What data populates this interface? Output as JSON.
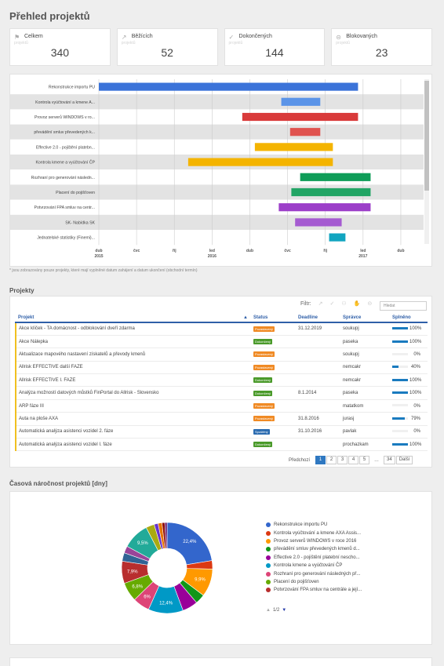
{
  "page": {
    "title": "Přehled projektů"
  },
  "stats": [
    {
      "icon": "flag-icon",
      "glyph": "⚑",
      "label": "Celkem",
      "sub": "projektů",
      "value": "340"
    },
    {
      "icon": "arrow-icon",
      "glyph": "↗",
      "label": "Běžících",
      "sub": "projektů",
      "value": "52"
    },
    {
      "icon": "check-icon",
      "glyph": "✓",
      "label": "Dokončených",
      "sub": "projektů",
      "value": "144"
    },
    {
      "icon": "blocked-icon",
      "glyph": "⊝",
      "label": "Blokovaných",
      "sub": "projektů",
      "value": "23"
    }
  ],
  "gantt": {
    "note": "* jsou zobrazovány pouze projekty, které mají vyplněné datum zahájení a datum ukončení (obchodní termín)",
    "axis_labels": [
      {
        "m": 0,
        "text": "dub",
        "year": "2015"
      },
      {
        "m": 3,
        "text": "čvc",
        "year": ""
      },
      {
        "m": 6,
        "text": "říj",
        "year": ""
      },
      {
        "m": 9,
        "text": "led",
        "year": "2016"
      },
      {
        "m": 12,
        "text": "dub",
        "year": ""
      },
      {
        "m": 15,
        "text": "čvc",
        "year": ""
      },
      {
        "m": 18,
        "text": "říj",
        "year": ""
      },
      {
        "m": 21,
        "text": "led",
        "year": "2017"
      },
      {
        "m": 24,
        "text": "dub",
        "year": ""
      }
    ],
    "rows": [
      {
        "label": "Rekonstrukce importu PU",
        "start": 0,
        "end": 20.6,
        "color": "#3b73d9"
      },
      {
        "label": "Kontrola vyúčtování a kmene A...",
        "start": 14.5,
        "end": 17.6,
        "color": "#5b94e8"
      },
      {
        "label": "Provoz serverů WINDOWS v ro...",
        "start": 11.4,
        "end": 20.6,
        "color": "#d93a3a"
      },
      {
        "label": "převádění smluv převedených k...",
        "start": 15.2,
        "end": 17.6,
        "color": "#e0534f"
      },
      {
        "label": "Effective 2.0 - pojištění platebn...",
        "start": 12.4,
        "end": 18.6,
        "color": "#f4b400"
      },
      {
        "label": "Kontrola kmene a vyúčtování ČP",
        "start": 7.1,
        "end": 18.6,
        "color": "#f4b400"
      },
      {
        "label": "Rozhraní pro generování následn...",
        "start": 16.0,
        "end": 21.6,
        "color": "#0f9d58"
      },
      {
        "label": "Placení do pojišťoven",
        "start": 15.3,
        "end": 21.6,
        "color": "#22a565"
      },
      {
        "label": "Potvrzování FPA smluv na centr...",
        "start": 14.3,
        "end": 21.6,
        "color": "#9c3fc9"
      },
      {
        "label": "SK- Nabídka SK",
        "start": 15.6,
        "end": 19.3,
        "color": "#a55bd1"
      },
      {
        "label": "Jednatelské statistiky (Finemi)...",
        "start": 18.3,
        "end": 19.6,
        "color": "#12a5c0"
      }
    ]
  },
  "projects": {
    "section_title": "Projekty",
    "filter_label": "Filtr:",
    "search_placeholder": "Hledat",
    "columns": {
      "name": "Projekt",
      "status": "Status",
      "deadline": "Deadline",
      "manager": "Správce",
      "done": "Splněno"
    },
    "rows": [
      {
        "name": "Akce klíček - TA domácnost - odblokování dveří zdarma",
        "status": "Pozastavený",
        "status_color": "#f08a24",
        "deadline": "31.12.2019",
        "manager": "soukupj",
        "done": 100,
        "done_text": "100%"
      },
      {
        "name": "Akce Nálepka",
        "status": "Dokončený",
        "status_color": "#4a9a2a",
        "deadline": "",
        "manager": "paseka",
        "done": 100,
        "done_text": "100%"
      },
      {
        "name": "Aktualizace mapového nastavení získatelů a převody kmenů",
        "status": "Pozastavený",
        "status_color": "#f08a24",
        "deadline": "",
        "manager": "soukupj",
        "done": 0,
        "done_text": "0%"
      },
      {
        "name": "Allrisk EFFECTIVE další FAZE",
        "status": "Pozastavený",
        "status_color": "#f08a24",
        "deadline": "",
        "manager": "nemcakr",
        "done": 40,
        "done_text": "40%"
      },
      {
        "name": "Allrisk EFFECTIVE I. FAZE",
        "status": "Dokončený",
        "status_color": "#4a9a2a",
        "deadline": "",
        "manager": "nemcakr",
        "done": 100,
        "done_text": "100%"
      },
      {
        "name": "Analýza možností datových můstků FinPortal do Allrisk - Slovensko",
        "status": "Dokončený",
        "status_color": "#4a9a2a",
        "deadline": "8.1.2014",
        "manager": "paseka",
        "done": 100,
        "done_text": "100%"
      },
      {
        "name": "ARP fáze III",
        "status": "Pozastavený",
        "status_color": "#f08a24",
        "deadline": "",
        "manager": "matatkom",
        "done": 0,
        "done_text": "0%"
      },
      {
        "name": "Auta na ploše AXA",
        "status": "Pozastavený",
        "status_color": "#f08a24",
        "deadline": "31.8.2016",
        "manager": "jurasj",
        "done": 79,
        "done_text": "79%"
      },
      {
        "name": "Automatická analýza asistenci vozidel 2. fáze",
        "status": "Spuštěný",
        "status_color": "#2a6bb0",
        "deadline": "31.10.2016",
        "manager": "pavlak",
        "done": 0,
        "done_text": "0%"
      },
      {
        "name": "Automatická analýza asistenci vozidel I. fáze",
        "status": "Dokončený",
        "status_color": "#4a9a2a",
        "deadline": "",
        "manager": "prochazkam",
        "done": 100,
        "done_text": "100%"
      }
    ],
    "pager": {
      "prev": "Předchozí",
      "pages": [
        "1",
        "2",
        "3",
        "4",
        "5"
      ],
      "ellipsis": "…",
      "last": "34",
      "next": "Další"
    }
  },
  "chart_section_title": "Časová náročnost projektů [dny]",
  "chart_data": {
    "type": "pie",
    "title": "",
    "slices": [
      {
        "value": 22.4,
        "label": "22,4%",
        "color": "#3366cc"
      },
      {
        "value": 3.0,
        "label": "",
        "color": "#dc3912"
      },
      {
        "value": 9.9,
        "label": "9,9%",
        "color": "#ff9900"
      },
      {
        "value": 3.5,
        "label": "",
        "color": "#109618"
      },
      {
        "value": 5.5,
        "label": "",
        "color": "#990099"
      },
      {
        "value": 12.4,
        "label": "12,4%",
        "color": "#0099c6"
      },
      {
        "value": 6.0,
        "label": "6%",
        "color": "#dd4477"
      },
      {
        "value": 6.8,
        "label": "6,8%",
        "color": "#66aa00"
      },
      {
        "value": 7.9,
        "label": "7,9%",
        "color": "#b82e2e"
      },
      {
        "value": 3.0,
        "label": "",
        "color": "#316395"
      },
      {
        "value": 2.5,
        "label": "",
        "color": "#994499"
      },
      {
        "value": 9.5,
        "label": "9,5%",
        "color": "#22aa99"
      },
      {
        "value": 3.0,
        "label": "",
        "color": "#aaaa11"
      },
      {
        "value": 1.4,
        "label": "",
        "color": "#6633cc"
      },
      {
        "value": 1.4,
        "label": "",
        "color": "#e67300"
      },
      {
        "value": 1.0,
        "label": "",
        "color": "#8b0707"
      },
      {
        "value": 0.8,
        "label": "",
        "color": "#651067"
      }
    ],
    "legend": [
      {
        "name": "Rekonstrukce importu PU",
        "color": "#3366cc"
      },
      {
        "name": "Kontrola vyúčtování a kmene AXA Assis...",
        "color": "#dc3912"
      },
      {
        "name": "Provoz serverů WINDOWS v roce 2016",
        "color": "#ff9900"
      },
      {
        "name": "převádění smluv převedených kmenů d...",
        "color": "#109618"
      },
      {
        "name": "Effective 2.0 - pojištění platební nescho...",
        "color": "#990099"
      },
      {
        "name": "Kontrola kmene a vyúčtování ČP",
        "color": "#0099c6"
      },
      {
        "name": "Rozhraní pro generování následných př...",
        "color": "#dd4477"
      },
      {
        "name": "Placení do pojišťoven",
        "color": "#66aa00"
      },
      {
        "name": "Potvrzování FPA smluv na centrále a její...",
        "color": "#b82e2e"
      }
    ],
    "legend_page": "1/2"
  }
}
